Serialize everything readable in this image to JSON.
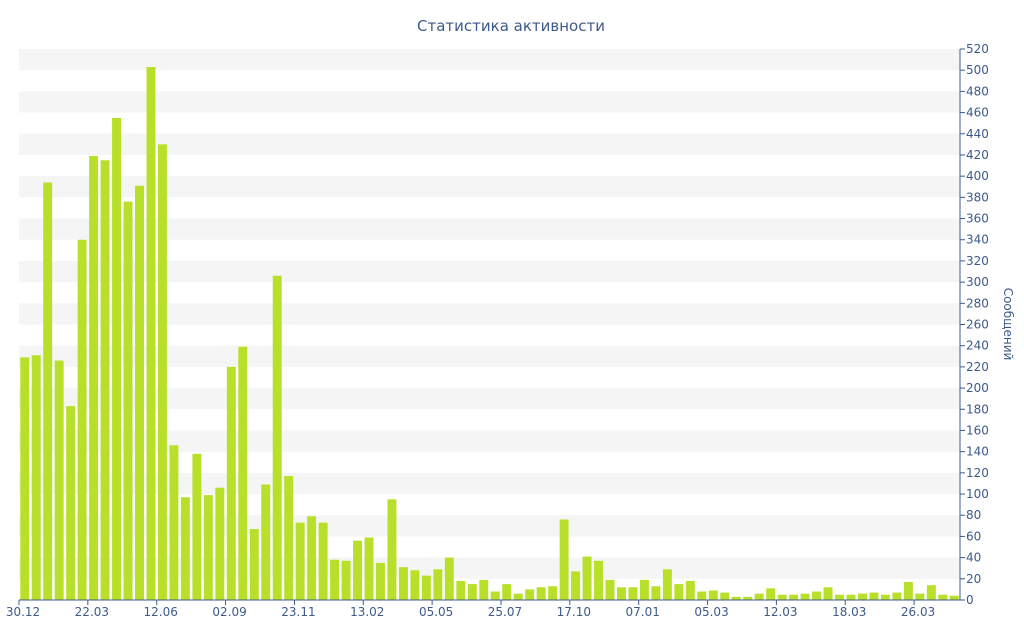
{
  "chart_data": {
    "type": "bar",
    "title": "Статистика активности",
    "xlabel": "",
    "ylabel": "Сообщений",
    "ylim": [
      0,
      520
    ],
    "y_ticks": [
      0,
      20,
      40,
      60,
      80,
      100,
      120,
      140,
      160,
      180,
      200,
      220,
      240,
      260,
      280,
      300,
      320,
      340,
      360,
      380,
      400,
      420,
      440,
      460,
      480,
      500,
      520
    ],
    "y_axis_side": "right",
    "x_tick_labels": [
      {
        "label": "30.12",
        "index": 0
      },
      {
        "label": "22.03",
        "index": 6
      },
      {
        "label": "12.06",
        "index": 12
      },
      {
        "label": "02.09",
        "index": 18
      },
      {
        "label": "23.11",
        "index": 24
      },
      {
        "label": "13.02",
        "index": 30
      },
      {
        "label": "05.05",
        "index": 36
      },
      {
        "label": "25.07",
        "index": 42
      },
      {
        "label": "17.10",
        "index": 48
      },
      {
        "label": "07.01",
        "index": 54
      },
      {
        "label": "05.03",
        "index": 60
      },
      {
        "label": "12.03",
        "index": 66
      },
      {
        "label": "18.03",
        "index": 72
      },
      {
        "label": "26.03",
        "index": 78
      }
    ],
    "values": [
      229,
      231,
      394,
      226,
      183,
      340,
      419,
      415,
      455,
      376,
      391,
      503,
      430,
      146,
      97,
      138,
      99,
      106,
      220,
      239,
      67,
      109,
      306,
      117,
      73,
      79,
      73,
      38,
      37,
      56,
      59,
      35,
      95,
      31,
      28,
      23,
      29,
      40,
      18,
      15,
      19,
      8,
      15,
      6,
      10,
      12,
      13,
      76,
      27,
      41,
      37,
      19,
      12,
      12,
      19,
      13,
      29,
      15,
      18,
      8,
      9,
      7,
      3,
      3,
      6,
      11,
      5,
      5,
      6,
      8,
      12,
      5,
      5,
      6,
      7,
      5,
      7,
      17,
      6,
      14,
      5,
      4
    ],
    "bar_color": "#b8e02a",
    "band_color": "#f5f5f5",
    "axis_color": "#3e5a8a",
    "grid": "alternating bands",
    "legend": "none"
  }
}
